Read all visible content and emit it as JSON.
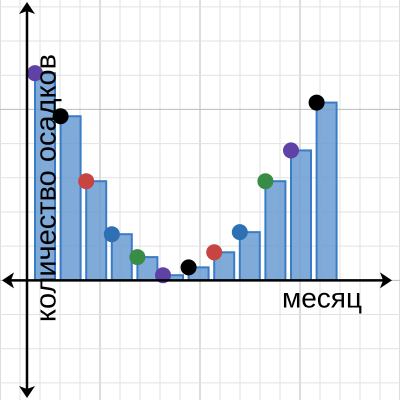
{
  "chart_data": {
    "type": "bar",
    "x_label": "месяц",
    "y_label": "количество осадков",
    "categories": [
      null,
      null,
      null,
      null,
      null,
      null,
      null,
      null,
      null,
      null,
      null,
      null
    ],
    "values": [
      6.06,
      4.8,
      2.9,
      1.35,
      0.68,
      0.15,
      0.38,
      0.82,
      1.41,
      2.9,
      3.8,
      5.2
    ],
    "color": "#6a9bd1",
    "point_colors": [
      "#6042a6",
      "#000000",
      "#c74440",
      "#2d70b3",
      "#388c46",
      "#6042a6",
      "#000000",
      "#c74440",
      "#2d70b3",
      "#388c46",
      "#6042a6",
      "#000000"
    ],
    "ylim": [
      -3.5,
      8.2
    ],
    "grid": true
  }
}
